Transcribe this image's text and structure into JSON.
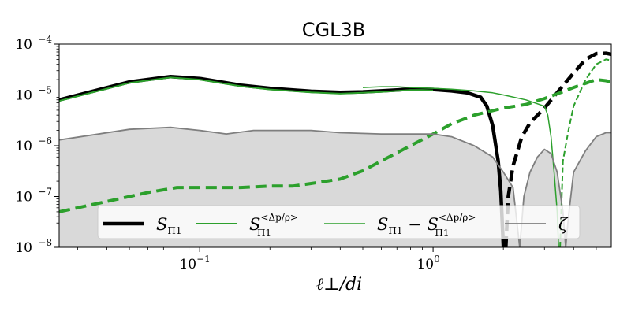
{
  "chart_data": {
    "type": "line",
    "title": "CGL3B",
    "xlabel": "ℓ⊥/di",
    "ylabel": "",
    "xscale": "log",
    "yscale": "log",
    "xlim": [
      0.025,
      5.8
    ],
    "ylim": [
      1e-08,
      0.0001
    ],
    "x_ticks": [
      {
        "value": 0.1,
        "base": "10",
        "exp": "−1"
      },
      {
        "value": 1,
        "base": "10",
        "exp": "0"
      }
    ],
    "y_ticks": [
      {
        "value": 1e-08,
        "base": "10",
        "exp": "−8"
      },
      {
        "value": 1e-07,
        "base": "10",
        "exp": "−7"
      },
      {
        "value": 1e-06,
        "base": "10",
        "exp": "−6"
      },
      {
        "value": 1e-05,
        "base": "10",
        "exp": "−5"
      },
      {
        "value": 0.0001,
        "base": "10",
        "exp": "−4"
      }
    ],
    "grid": false,
    "legend_position": "bottom",
    "series": [
      {
        "name": "SΠ1",
        "legend_main": "S",
        "legend_sub": "Π1",
        "legend_sup": "",
        "color": "#000000",
        "style": "solid",
        "width": 4.5,
        "points": [
          [
            0.025,
            8e-06
          ],
          [
            0.05,
            1.8e-05
          ],
          [
            0.075,
            2.3e-05
          ],
          [
            0.1,
            2.1e-05
          ],
          [
            0.15,
            1.55e-05
          ],
          [
            0.2,
            1.35e-05
          ],
          [
            0.3,
            1.18e-05
          ],
          [
            0.4,
            1.12e-05
          ],
          [
            0.5,
            1.15e-05
          ],
          [
            0.6,
            1.2e-05
          ],
          [
            0.7,
            1.25e-05
          ],
          [
            0.8,
            1.3e-05
          ],
          [
            0.9,
            1.3e-05
          ],
          [
            1.0,
            1.28e-05
          ],
          [
            1.2,
            1.2e-05
          ],
          [
            1.4,
            1.1e-05
          ],
          [
            1.6,
            9e-06
          ],
          [
            1.7,
            6e-06
          ],
          [
            1.8,
            2.5e-06
          ],
          [
            1.9,
            5e-07
          ],
          [
            1.95,
            1.3e-07
          ],
          [
            2.0,
            1e-08
          ]
        ]
      },
      {
        "name": "SΠ1 (dashed, negative)",
        "legend_main": "",
        "legend_sub": "",
        "legend_sup": "",
        "color": "#000000",
        "style": "dashed",
        "width": 4.5,
        "points": [
          [
            2.05,
            1e-08
          ],
          [
            2.1,
            1e-07
          ],
          [
            2.2,
            4e-07
          ],
          [
            2.4,
            1.5e-06
          ],
          [
            2.6,
            2.8e-06
          ],
          [
            3.0,
            5.5e-06
          ],
          [
            3.5,
            1.3e-05
          ],
          [
            4.0,
            2.7e-05
          ],
          [
            4.5,
            5e-05
          ],
          [
            5.0,
            6.5e-05
          ],
          [
            5.5,
            6.6e-05
          ],
          [
            5.8,
            6.3e-05
          ]
        ]
      },
      {
        "name": "SΠ1^<Δp/ρ>",
        "legend_main": "S",
        "legend_sub": "Π1",
        "legend_sup": "<Δp/ρ>",
        "color": "#2ca02c",
        "style": "solid",
        "width": 2,
        "points": [
          [
            0.025,
            7.6e-06
          ],
          [
            0.05,
            1.72e-05
          ],
          [
            0.075,
            2.2e-05
          ],
          [
            0.1,
            2e-05
          ],
          [
            0.15,
            1.48e-05
          ],
          [
            0.2,
            1.28e-05
          ],
          [
            0.3,
            1.12e-05
          ],
          [
            0.4,
            1.06e-05
          ],
          [
            0.5,
            1.1e-05
          ],
          [
            0.6,
            1.14e-05
          ],
          [
            0.7,
            1.2e-05
          ],
          [
            0.8,
            1.25e-05
          ],
          [
            0.9,
            1.25e-05
          ],
          [
            1.0,
            1.23e-05
          ]
        ]
      },
      {
        "name": "SΠ1^<Δp/ρ> (dashed)",
        "legend_main": "",
        "legend_sub": "",
        "legend_sup": "",
        "color": "#2ca02c",
        "style": "dashed",
        "width": 4,
        "points": [
          [
            0.025,
            5e-08
          ],
          [
            0.04,
            8e-08
          ],
          [
            0.06,
            1.2e-07
          ],
          [
            0.08,
            1.5e-07
          ],
          [
            0.1,
            1.5e-07
          ],
          [
            0.15,
            1.5e-07
          ],
          [
            0.2,
            1.6e-07
          ],
          [
            0.25,
            1.6e-07
          ],
          [
            0.3,
            1.8e-07
          ],
          [
            0.4,
            2.2e-07
          ],
          [
            0.5,
            3.2e-07
          ],
          [
            0.6,
            5e-07
          ],
          [
            0.8,
            1e-06
          ],
          [
            1.0,
            1.7e-06
          ],
          [
            1.2,
            2.7e-06
          ],
          [
            1.5,
            4e-06
          ],
          [
            2.0,
            5.5e-06
          ],
          [
            2.5,
            6.5e-06
          ],
          [
            3.0,
            8.5e-06
          ],
          [
            3.5,
            1.1e-05
          ],
          [
            4.0,
            1.4e-05
          ],
          [
            5.0,
            2e-05
          ],
          [
            5.5,
            1.9e-05
          ],
          [
            5.8,
            1.8e-05
          ]
        ]
      },
      {
        "name": "SΠ1 − SΠ1^<Δp/ρ>",
        "legend_main": "S",
        "legend_sub": "Π1",
        "legend_minus": "− S",
        "legend_sub2": "Π1",
        "legend_sup": "<Δp/ρ>",
        "color": "#2ca02c",
        "style": "solid",
        "width": 1.5,
        "points": [
          [
            0.5,
            1.4e-05
          ],
          [
            0.6,
            1.45e-05
          ],
          [
            0.7,
            1.45e-05
          ],
          [
            0.8,
            1.4e-05
          ],
          [
            1.0,
            1.35e-05
          ],
          [
            1.2,
            1.3e-05
          ],
          [
            1.5,
            1.2e-05
          ],
          [
            1.8,
            1.1e-05
          ],
          [
            2.0,
            1e-05
          ],
          [
            2.5,
            8e-06
          ],
          [
            3.0,
            6e-06
          ],
          [
            3.1,
            4e-06
          ],
          [
            3.2,
            1.5e-06
          ],
          [
            3.3,
            3e-07
          ],
          [
            3.4,
            5e-08
          ],
          [
            3.45,
            1e-08
          ]
        ]
      },
      {
        "name": "SΠ1 − SΠ1^<Δp/ρ> (dashed)",
        "legend_main": "",
        "legend_sub": "",
        "legend_sup": "",
        "color": "#2ca02c",
        "style": "dashed",
        "width": 2,
        "points": [
          [
            3.5,
            1e-08
          ],
          [
            3.6,
            5e-07
          ],
          [
            3.8,
            2e-06
          ],
          [
            4.0,
            6e-06
          ],
          [
            4.5,
            2e-05
          ],
          [
            5.0,
            4e-05
          ],
          [
            5.5,
            5e-05
          ],
          [
            5.8,
            4.8e-05
          ]
        ]
      },
      {
        "name": "ζ",
        "legend_main": "ζ",
        "legend_sub": "",
        "legend_sup": "",
        "color": "#7f7f7f",
        "fill": "#d9d9d9",
        "style": "solid",
        "width": 1.8,
        "points": [
          [
            0.025,
            1.3e-06
          ],
          [
            0.05,
            2.1e-06
          ],
          [
            0.075,
            2.3e-06
          ],
          [
            0.1,
            2e-06
          ],
          [
            0.13,
            1.7e-06
          ],
          [
            0.17,
            2e-06
          ],
          [
            0.2,
            2e-06
          ],
          [
            0.3,
            2e-06
          ],
          [
            0.4,
            1.8e-06
          ],
          [
            0.6,
            1.7e-06
          ],
          [
            0.8,
            1.7e-06
          ],
          [
            1.0,
            1.7e-06
          ],
          [
            1.2,
            1.5e-06
          ],
          [
            1.5,
            1e-06
          ],
          [
            1.8,
            6e-07
          ],
          [
            2.0,
            3e-07
          ],
          [
            2.2,
            1.5e-07
          ],
          [
            2.35,
            1e-08
          ],
          [
            2.45,
            1e-07
          ],
          [
            2.6,
            3e-07
          ],
          [
            2.8,
            6e-07
          ],
          [
            3.0,
            8.5e-07
          ],
          [
            3.2,
            7e-07
          ],
          [
            3.4,
            3e-07
          ],
          [
            3.6,
            5e-08
          ],
          [
            3.7,
            1e-08
          ],
          [
            3.8,
            4e-08
          ],
          [
            4.0,
            3e-07
          ],
          [
            4.5,
            8e-07
          ],
          [
            5.0,
            1.5e-06
          ],
          [
            5.5,
            1.8e-06
          ],
          [
            5.8,
            1.8e-06
          ]
        ]
      }
    ]
  }
}
